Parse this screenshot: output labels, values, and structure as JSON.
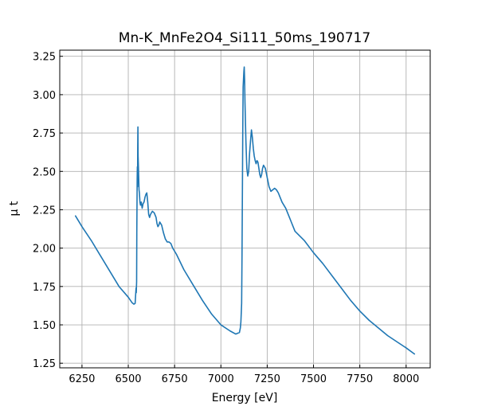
{
  "chart_data": {
    "type": "line",
    "title": "Mn-K_MnFe2O4_Si111_50ms_190717",
    "xlabel": "Energy [eV]",
    "ylabel": "μ t",
    "xlim": [
      6130,
      8130
    ],
    "ylim": [
      1.22,
      3.29
    ],
    "xticks": [
      6250,
      6500,
      6750,
      7000,
      7250,
      7500,
      7750,
      8000
    ],
    "xtick_labels": [
      "6250",
      "6500",
      "6750",
      "7000",
      "7250",
      "7500",
      "7750",
      "8000"
    ],
    "yticks": [
      1.25,
      1.5,
      1.75,
      2.0,
      2.25,
      2.5,
      2.75,
      3.0,
      3.25
    ],
    "ytick_labels": [
      "1.25",
      "1.50",
      "1.75",
      "2.00",
      "2.25",
      "2.50",
      "2.75",
      "3.00",
      "3.25"
    ],
    "grid": true,
    "series_color": "#1f77b4",
    "x": [
      6215,
      6250,
      6300,
      6350,
      6400,
      6450,
      6500,
      6520,
      6530,
      6537,
      6540,
      6542,
      6543,
      6545,
      6546,
      6548,
      6549,
      6550,
      6551,
      6552,
      6553,
      6555,
      6558,
      6560,
      6563,
      6566,
      6570,
      6575,
      6580,
      6585,
      6590,
      6595,
      6600,
      6605,
      6610,
      6615,
      6620,
      6630,
      6640,
      6650,
      6655,
      6660,
      6665,
      6670,
      6675,
      6680,
      6690,
      6700,
      6710,
      6720,
      6730,
      6740,
      6750,
      6760,
      6780,
      6800,
      6850,
      6900,
      6950,
      7000,
      7050,
      7080,
      7100,
      7105,
      7108,
      7110,
      7112,
      7114,
      7116,
      7118,
      7120,
      7122,
      7124,
      7126,
      7128,
      7130,
      7132,
      7135,
      7140,
      7145,
      7150,
      7155,
      7160,
      7165,
      7170,
      7175,
      7180,
      7185,
      7190,
      7195,
      7200,
      7205,
      7210,
      7215,
      7220,
      7225,
      7230,
      7235,
      7240,
      7250,
      7260,
      7270,
      7280,
      7290,
      7300,
      7310,
      7320,
      7330,
      7340,
      7350,
      7360,
      7370,
      7380,
      7390,
      7400,
      7450,
      7500,
      7550,
      7600,
      7650,
      7700,
      7750,
      7800,
      7850,
      7900,
      7950,
      8000,
      8045
    ],
    "y": [
      2.21,
      2.14,
      2.05,
      1.95,
      1.85,
      1.75,
      1.68,
      1.645,
      1.635,
      1.64,
      1.7,
      1.74,
      1.71,
      1.78,
      2.1,
      2.45,
      2.53,
      2.4,
      2.65,
      2.79,
      2.6,
      2.52,
      2.38,
      2.36,
      2.3,
      2.28,
      2.3,
      2.26,
      2.29,
      2.3,
      2.33,
      2.35,
      2.36,
      2.3,
      2.22,
      2.2,
      2.22,
      2.24,
      2.23,
      2.2,
      2.16,
      2.14,
      2.15,
      2.17,
      2.16,
      2.15,
      2.1,
      2.06,
      2.04,
      2.04,
      2.03,
      2.0,
      1.98,
      1.96,
      1.91,
      1.86,
      1.76,
      1.66,
      1.57,
      1.5,
      1.46,
      1.44,
      1.45,
      1.48,
      1.52,
      1.58,
      1.64,
      1.95,
      2.35,
      2.75,
      3.05,
      3.1,
      3.15,
      3.18,
      3.1,
      2.95,
      2.85,
      2.7,
      2.52,
      2.47,
      2.5,
      2.62,
      2.7,
      2.77,
      2.72,
      2.65,
      2.6,
      2.57,
      2.55,
      2.57,
      2.56,
      2.52,
      2.48,
      2.46,
      2.48,
      2.52,
      2.54,
      2.53,
      2.52,
      2.46,
      2.4,
      2.37,
      2.38,
      2.39,
      2.38,
      2.36,
      2.33,
      2.3,
      2.28,
      2.26,
      2.23,
      2.2,
      2.17,
      2.14,
      2.11,
      2.05,
      1.97,
      1.9,
      1.82,
      1.74,
      1.66,
      1.59,
      1.53,
      1.48,
      1.43,
      1.39,
      1.35,
      1.31
    ]
  }
}
